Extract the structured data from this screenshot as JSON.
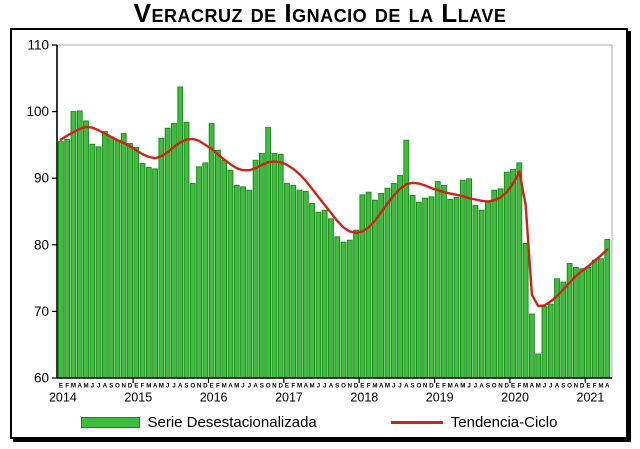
{
  "title": "Veracruz de Ignacio de la Llave",
  "legend": {
    "series_label": "Serie Desestacionalizada",
    "trend_label": "Tendencia-Ciclo"
  },
  "colors": {
    "bar_fill": "#3CBE3C",
    "bar_stroke": "#1E821E",
    "trend": "#D02318",
    "axis": "#000000",
    "plot_border": "#A8A8A8"
  },
  "chart_data": {
    "type": "bar",
    "title": "Veracruz de Ignacio de la Llave",
    "xlabel": "",
    "ylabel": "",
    "ylim": [
      60,
      110
    ],
    "yticks": [
      60,
      70,
      80,
      90,
      100,
      110
    ],
    "grid": false,
    "legend_position": "bottom",
    "month_letters": [
      "E",
      "F",
      "M",
      "A",
      "M",
      "J",
      "J",
      "A",
      "S",
      "O",
      "N",
      "D"
    ],
    "years": [
      "2014",
      "2015",
      "2016",
      "2017",
      "2018",
      "2019",
      "2020",
      "2021"
    ],
    "months_total": 88,
    "series": [
      {
        "name": "Serie Desestacionalizada",
        "type": "bar",
        "values": [
          95.5,
          95.8,
          100.0,
          100.1,
          98.6,
          95.1,
          94.7,
          97.0,
          96.2,
          95.7,
          96.7,
          95.2,
          94.6,
          92.2,
          91.6,
          91.4,
          96.0,
          97.5,
          98.2,
          103.7,
          98.4,
          89.2,
          91.7,
          92.3,
          98.2,
          94.2,
          92.7,
          91.2,
          88.9,
          88.7,
          88.2,
          92.7,
          93.7,
          97.6,
          93.7,
          93.6,
          89.2,
          88.9,
          88.2,
          88.0,
          86.2,
          84.9,
          85.2,
          83.9,
          81.2,
          80.4,
          80.7,
          82.2,
          87.5,
          87.9,
          86.7,
          87.7,
          88.5,
          89.2,
          90.4,
          95.7,
          87.4,
          86.4,
          87.0,
          87.2,
          89.5,
          88.9,
          86.8,
          87.1,
          89.7,
          89.9,
          85.9,
          85.2,
          86.4,
          88.2,
          88.4,
          90.9,
          91.3,
          92.3,
          80.2,
          69.6,
          63.6,
          70.7,
          71.1,
          74.9,
          74.4,
          77.2,
          76.6,
          76.4,
          76.6,
          77.7,
          77.9,
          80.8
        ]
      },
      {
        "name": "Tendencia-Ciclo",
        "type": "line",
        "values": [
          95.8,
          96.4,
          96.9,
          97.4,
          97.7,
          97.6,
          97.2,
          96.7,
          96.2,
          95.7,
          95.3,
          94.8,
          94.2,
          93.6,
          93.2,
          93.0,
          93.3,
          93.9,
          94.7,
          95.4,
          95.8,
          95.9,
          95.6,
          95.0,
          94.4,
          93.6,
          92.8,
          92.1,
          91.5,
          91.2,
          91.2,
          91.5,
          92.0,
          92.4,
          92.5,
          92.4,
          92.0,
          91.4,
          90.6,
          89.6,
          88.4,
          87.2,
          86.0,
          84.8,
          83.6,
          82.6,
          82.0,
          81.8,
          82.0,
          82.6,
          83.6,
          84.9,
          86.2,
          87.4,
          88.4,
          89.1,
          89.3,
          89.2,
          88.9,
          88.5,
          88.2,
          87.9,
          87.7,
          87.5,
          87.3,
          87.0,
          86.8,
          86.6,
          86.5,
          86.7,
          87.1,
          87.9,
          89.2,
          91.0,
          86.0,
          72.5,
          70.8,
          70.9,
          71.5,
          72.3,
          73.3,
          74.3,
          75.3,
          76.1,
          76.8,
          77.6,
          78.4,
          79.3
        ]
      }
    ]
  }
}
